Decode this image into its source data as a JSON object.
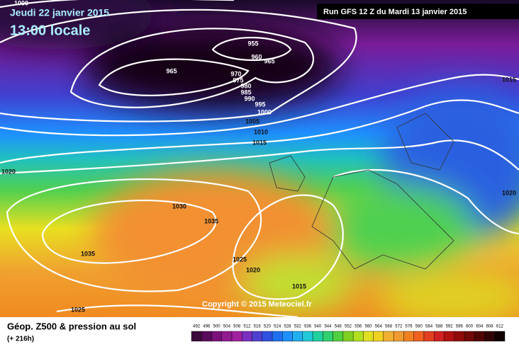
{
  "header": {
    "date": "Jeudi 22 janvier 2015",
    "time": "13:00 locale",
    "run": "Run GFS 12 Z du Mardi 13 janvier 2015"
  },
  "isobar_labels": [
    "1000",
    "965",
    "955",
    "960",
    "965",
    "970",
    "975",
    "980",
    "985",
    "990",
    "995",
    "1000",
    "1005",
    "1010",
    "1015",
    "1015",
    "1020",
    "1020",
    "1030",
    "1035",
    "1035",
    "1025",
    "1020",
    "1015",
    "1025"
  ],
  "copyright": "Copyright © 2015 Meteociel.fr",
  "footer": {
    "title": "Géop. Z500 & pression au sol",
    "lead": "(+ 216h)"
  },
  "legend": {
    "values": [
      "492",
      "496",
      "500",
      "504",
      "508",
      "512",
      "516",
      "520",
      "524",
      "528",
      "532",
      "536",
      "540",
      "544",
      "548",
      "552",
      "556",
      "560",
      "564",
      "568",
      "572",
      "576",
      "580",
      "584",
      "588",
      "592",
      "596",
      "600",
      "604",
      "608",
      "612"
    ],
    "colors": [
      "#3a0a3a",
      "#5a0a5a",
      "#7a107a",
      "#901a90",
      "#a020a0",
      "#7a30c0",
      "#5040d0",
      "#3050e0",
      "#1e70f0",
      "#1e90ff",
      "#20b0f0",
      "#20c8d8",
      "#20d0a0",
      "#30d070",
      "#50d040",
      "#80d020",
      "#b0e020",
      "#e0e020",
      "#f0d020",
      "#f0b030",
      "#f09a30",
      "#f08020",
      "#f06020",
      "#e04020",
      "#d02020",
      "#b01010",
      "#900a0a",
      "#700808",
      "#500505",
      "#300303",
      "#100000"
    ]
  }
}
